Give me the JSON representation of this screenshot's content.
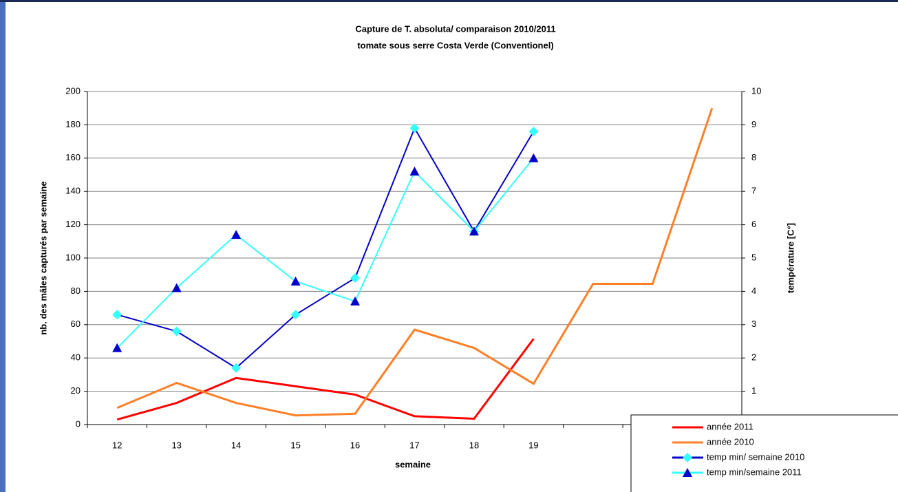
{
  "chart_data": {
    "type": "line",
    "title": "Capture de T. absoluta/ comparaison 2010/2011",
    "subtitle": "tomate sous serre Costa Verde (Conventionel)",
    "x_label": "semaine",
    "y_label": "nb. des mâles capturés par semaine",
    "y2_label": "température [C°]",
    "categories": [
      "12",
      "13",
      "14",
      "15",
      "16",
      "17",
      "18",
      "19",
      null,
      null,
      null
    ],
    "ylim": [
      0,
      200
    ],
    "yticks": [
      0,
      20,
      40,
      60,
      80,
      100,
      120,
      140,
      160,
      180,
      200
    ],
    "y2lim": [
      0,
      10
    ],
    "y2ticks": [
      0,
      1,
      2,
      3,
      4,
      5,
      6,
      7,
      8,
      9,
      10
    ],
    "grid": true,
    "legend": "lower right",
    "series": [
      {
        "name": "année 2011",
        "color": "#ff0000",
        "values": [
          3,
          13,
          28,
          23,
          18,
          5,
          3.5,
          51.5,
          null,
          null,
          null
        ]
      },
      {
        "name": "année 2010",
        "color": "#ff7f27",
        "values": [
          10,
          25,
          13,
          5.5,
          6.5,
          57,
          46,
          24.5,
          84.5,
          84.5,
          190
        ]
      },
      {
        "name": "temp min/ semaine 2010",
        "color": "#0000cc",
        "marker": "diamond",
        "marker_color": "#33ffff",
        "axis": "y2",
        "values": [
          3.3,
          2.8,
          1.7,
          3.3,
          4.4,
          8.9,
          5.8,
          8.8,
          null,
          null,
          null
        ]
      },
      {
        "name": "temp min/semaine 2011",
        "color": "#33ffff",
        "marker": "triangle",
        "marker_color": "#0000cc",
        "axis": "y2",
        "values": [
          2.3,
          4.1,
          5.7,
          4.3,
          3.7,
          7.6,
          5.8,
          8.0,
          null,
          null,
          null
        ]
      }
    ]
  }
}
